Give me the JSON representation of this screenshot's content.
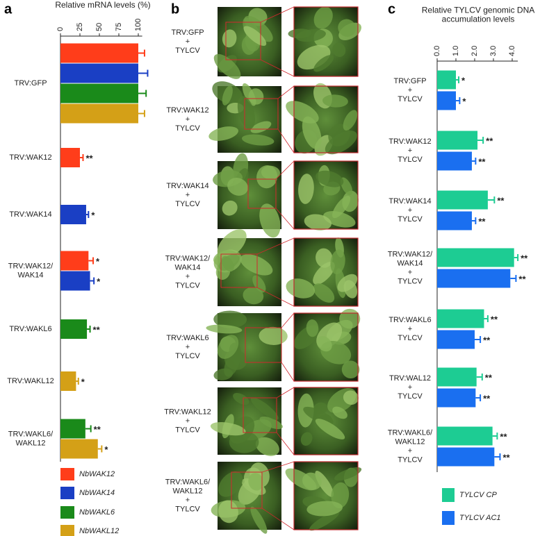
{
  "chart_data": [
    {
      "type": "bar",
      "panel": "a",
      "title": "Relative mRNA levels (%)",
      "categories": [
        "TRV:GFP",
        "TRV:WAK12",
        "TRV:WAK14",
        "TRV:WAK12/\nWAK14",
        "TRV:WAKL6",
        "TRV:WAKL12",
        "TRV:WAKL6/\nWAKL12"
      ],
      "series": [
        {
          "name": "NbWAK12",
          "color": "#ff3d1a",
          "values": [
            100,
            25,
            null,
            36,
            null,
            null,
            null
          ],
          "errors": [
            8,
            4,
            null,
            6,
            null,
            null,
            null
          ],
          "annotations": [
            null,
            "**",
            null,
            "*",
            null,
            null,
            null
          ]
        },
        {
          "name": "NbWAK14",
          "color": "#1a3fc4",
          "values": [
            100,
            null,
            33,
            38,
            null,
            null,
            null
          ],
          "errors": [
            12,
            null,
            3,
            5,
            null,
            null,
            null
          ],
          "annotations": [
            null,
            null,
            "*",
            "*",
            null,
            null,
            null
          ]
        },
        {
          "name": "NbWAKL6",
          "color": "#1a8a1a",
          "values": [
            100,
            null,
            null,
            null,
            34,
            null,
            32
          ],
          "errors": [
            10,
            null,
            null,
            null,
            4,
            null,
            7
          ],
          "annotations": [
            null,
            null,
            null,
            null,
            "**",
            null,
            "**"
          ]
        },
        {
          "name": "NbWAKL12",
          "color": "#d4a017",
          "values": [
            100,
            null,
            null,
            null,
            null,
            20,
            48
          ],
          "errors": [
            8,
            null,
            null,
            null,
            null,
            3,
            5
          ],
          "annotations": [
            null,
            null,
            null,
            null,
            null,
            "*",
            "*"
          ]
        }
      ],
      "xlim": [
        0,
        105
      ],
      "xticks": [
        0,
        25,
        50,
        75,
        100
      ],
      "legend": "bottom-left"
    },
    {
      "type": "bar",
      "panel": "c",
      "title": "Relative TYLCV genomic DNA\naccumulation levels",
      "categories": [
        "TRV:GFP\n+\nTYLCV",
        "TRV:WAK12\n+\nTYLCV",
        "TRV:WAK14\n+\nTYLCV",
        "TRV:WAK12/\nWAK14\n+\nTYLCV",
        "TRV:WAKL6\n+\nTYLCV",
        "TRV:WAL12\n+\nTYLCV",
        "TRV:WAKL6/\nWAKL12\n+\nTYLCV"
      ],
      "series": [
        {
          "name": "TYLCV CP",
          "color": "#1dcc93",
          "values": [
            1.0,
            2.15,
            2.7,
            4.1,
            2.5,
            2.1,
            2.95
          ],
          "errors": [
            0.15,
            0.3,
            0.35,
            0.2,
            0.2,
            0.3,
            0.25
          ],
          "annotations": [
            "*",
            "**",
            "**",
            "**",
            "**",
            "**",
            "**"
          ]
        },
        {
          "name": "TYLCV AC1",
          "color": "#1a6ff0",
          "values": [
            1.0,
            1.85,
            1.85,
            3.9,
            2.0,
            2.05,
            3.05
          ],
          "errors": [
            0.2,
            0.2,
            0.2,
            0.3,
            0.3,
            0.25,
            0.3
          ],
          "annotations": [
            "*",
            "**",
            "**",
            "**",
            "**",
            "**",
            "**"
          ]
        }
      ],
      "xlim": [
        0,
        4.3
      ],
      "xticks": [
        {
          "value": 0,
          "label": "0.0"
        },
        {
          "value": 1,
          "label": "1.0"
        },
        {
          "value": 2,
          "label": "2.0"
        },
        {
          "value": 3,
          "label": "3.0"
        },
        {
          "value": 4,
          "label": "4.0"
        }
      ],
      "legend": "bottom-left"
    }
  ],
  "panel_b": {
    "panel": "b",
    "rows": [
      "TRV:GFP\n+\nTYLCV",
      "TRV:WAK12\n+\nTYLCV",
      "TRV:WAK14\n+\nTYLCV",
      "TRV:WAK12/\nWAK14\n+\nTYLCV",
      "TRV:WAKL6\n+\nTYLCV",
      "TRV:WAKL12\n+\nTYLCV",
      "TRV:WAKL6/\nWAKL12\n+\nTYLCV"
    ]
  }
}
